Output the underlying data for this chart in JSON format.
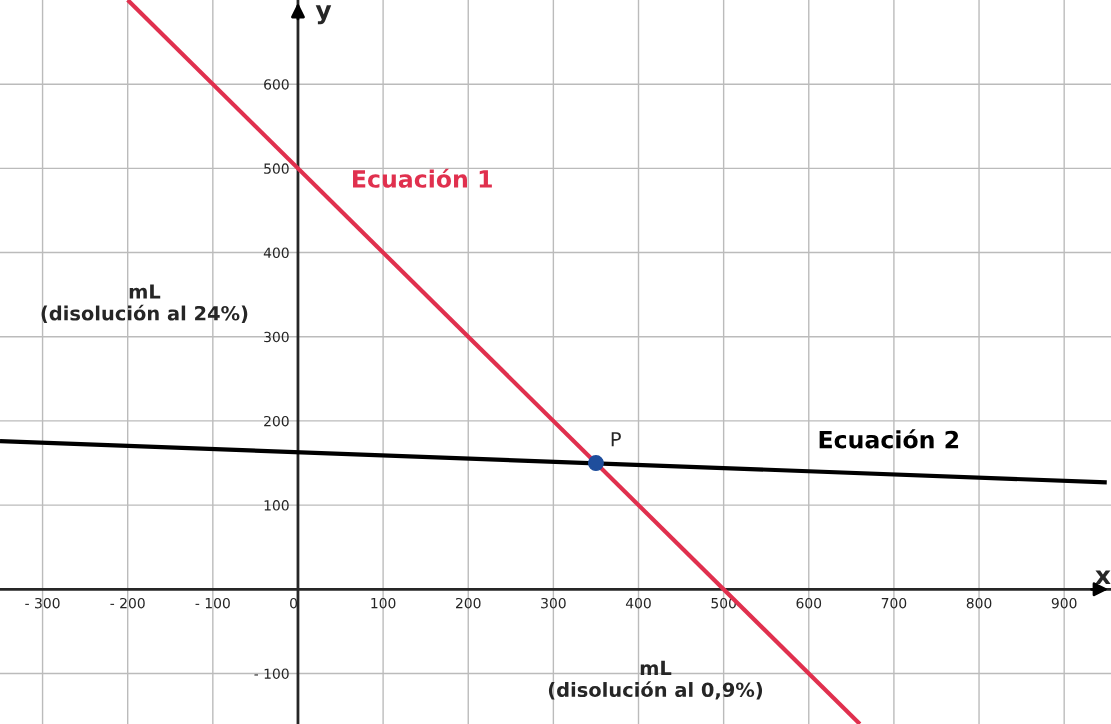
{
  "chart_data": {
    "type": "line",
    "xlabel": "mL\n(disolución al 0,9%)",
    "ylabel": "mL\n(disolución al 24%)",
    "series": [
      {
        "name": "Ecuación 1",
        "color": "#e0304e",
        "x": [
          -200,
          660
        ],
        "values": [
          700,
          -160
        ]
      },
      {
        "name": "Ecuación 2",
        "color": "#000000",
        "x": [
          -350,
          950
        ],
        "values": [
          176,
          127
        ]
      },
      {
        "type": "scatter",
        "color": "#1f4e9c",
        "marker": "circle",
        "x": [
          350
        ],
        "values": [
          150
        ]
      }
    ],
    "annotations": [
      {
        "text": "P",
        "x": 350,
        "y": 150
      },
      "x",
      "y"
    ],
    "xlim": [
      -350,
      955
    ],
    "ylim": [
      -160,
      700
    ],
    "xticks": [
      {
        "value": -300,
        "label": "- 300"
      },
      {
        "value": -200,
        "label": "- 200"
      },
      {
        "value": -100,
        "label": "- 100"
      },
      0,
      100,
      200,
      300,
      400,
      500,
      600,
      700,
      800,
      900
    ],
    "yticks": [
      {
        "value": -100,
        "label": "- 100"
      },
      100,
      200,
      300,
      400,
      500,
      600
    ],
    "grid": true,
    "legend": false,
    "marker": "none",
    "line_style": "solid"
  }
}
